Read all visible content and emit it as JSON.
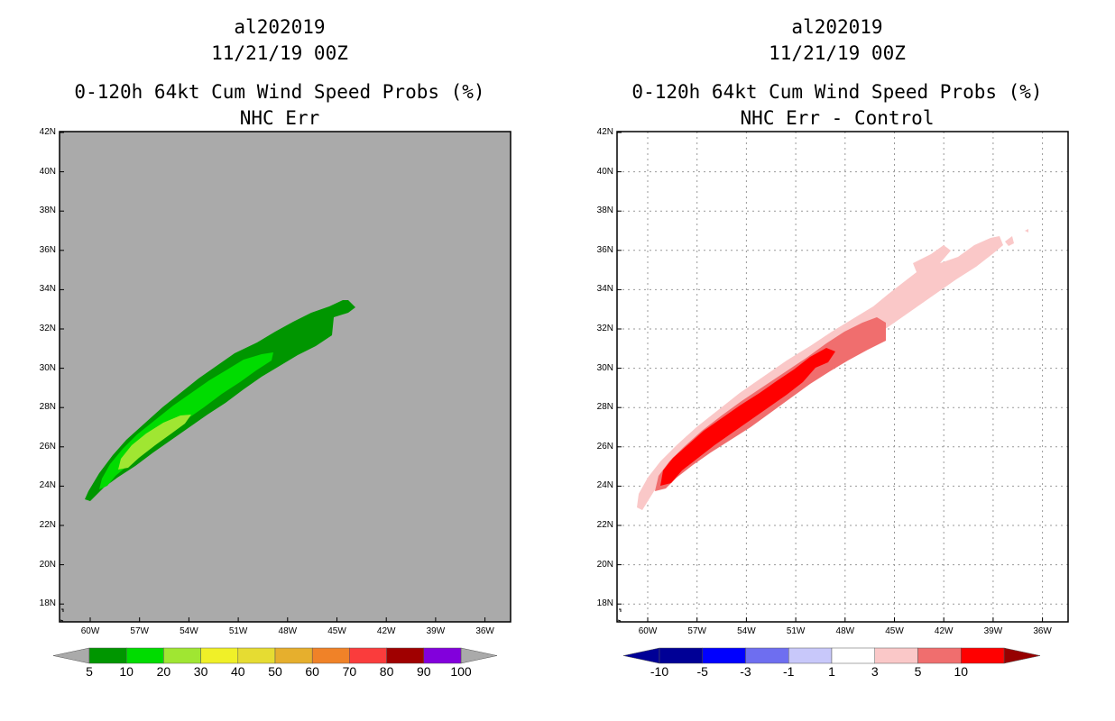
{
  "left_panel": {
    "title_line1": "al202019",
    "title_line2": "11/21/19 00Z",
    "title_line3": "0-120h 64kt Cum Wind Speed Probs (%)",
    "title_line4": "NHC Err",
    "background_color": "#aaaaaa",
    "colorbar_labels": [
      "5",
      "10",
      "20",
      "30",
      "40",
      "50",
      "60",
      "70",
      "80",
      "90",
      "100"
    ],
    "colorbar_colors": [
      "#009600",
      "#00dc00",
      "#a0e632",
      "#f0f028",
      "#e6dc32",
      "#e6af2d",
      "#f08228",
      "#fa3c3c",
      "#a00000",
      "#8200dc"
    ],
    "contour_fills": {
      "c5": "#009600",
      "c10": "#00dc00",
      "c20": "#a0e632"
    }
  },
  "right_panel": {
    "title_line1": "al202019",
    "title_line2": "11/21/19 00Z",
    "title_line3": "0-120h 64kt Cum Wind Speed Probs (%)",
    "title_line4": "NHC Err - Control",
    "background_color": "#ffffff",
    "colorbar_labels": [
      "-10",
      "-5",
      "-3",
      "-1",
      "1",
      "3",
      "5",
      "10"
    ],
    "colorbar_colors": [
      "#000096",
      "#0000ff",
      "#6e6ef0",
      "#c8c8fa",
      "#ffffff",
      "#fac8c8",
      "#f06e6e",
      "#ff0000"
    ],
    "colorbar_end_colors": {
      "low": "#000096",
      "high": "#960000"
    },
    "contour_fills": {
      "c1": "#fac8c8",
      "c3": "#f06e6e",
      "c5": "#ff0000"
    }
  },
  "y_axis_labels": [
    "42N",
    "40N",
    "38N",
    "36N",
    "34N",
    "32N",
    "30N",
    "28N",
    "26N",
    "24N",
    "22N",
    "20N",
    "18N"
  ],
  "x_axis_labels": [
    "60W",
    "57W",
    "54W",
    "51W",
    "48W",
    "45W",
    "42W",
    "39W",
    "36W"
  ]
}
